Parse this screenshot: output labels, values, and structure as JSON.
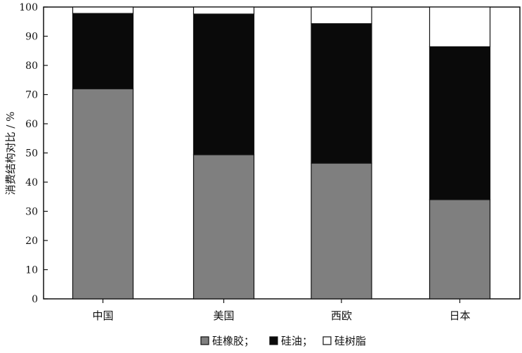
{
  "chart_data": {
    "type": "bar",
    "stacked": true,
    "categories": [
      "中国",
      "美国",
      "西欧",
      "日本"
    ],
    "series": [
      {
        "name": "硅橡胶",
        "values": [
          72.0,
          49.4,
          46.5,
          34.0
        ],
        "color": "#7f7f7f"
      },
      {
        "name": "硅油",
        "values": [
          25.8,
          48.2,
          47.8,
          52.4
        ],
        "color": "#0a0a0a"
      },
      {
        "name": "硅树脂",
        "values": [
          2.2,
          2.4,
          5.7,
          13.6
        ],
        "color": "#ffffff"
      }
    ],
    "ylabel": "消费结构对比 / %",
    "xlabel": "",
    "ylim": [
      0,
      100
    ],
    "yticks": [
      0,
      10,
      20,
      30,
      40,
      50,
      60,
      70,
      80,
      90,
      100
    ],
    "grid": false,
    "legend": {
      "position": "bottom",
      "labels": [
        "硅橡胶；",
        "硅油；",
        "硅树脂"
      ]
    }
  }
}
